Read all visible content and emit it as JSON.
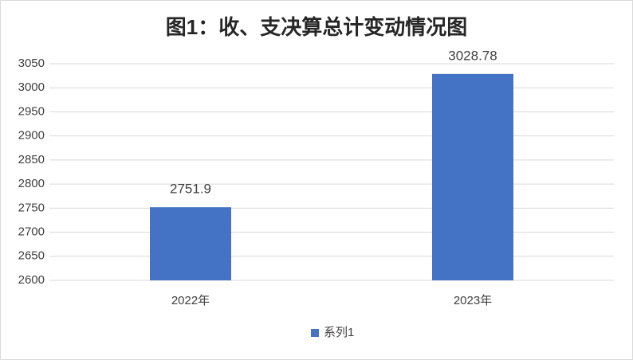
{
  "chart_data": {
    "type": "bar",
    "title": "图1：收、支决算总计变动情况图",
    "categories": [
      "2022年",
      "2023年"
    ],
    "series": [
      {
        "name": "系列1",
        "color": "#4472c4",
        "values": [
          2751.9,
          3028.78
        ]
      }
    ],
    "ylim": [
      2600,
      3050
    ],
    "yticks": [
      2600,
      2650,
      2700,
      2750,
      2800,
      2850,
      2900,
      2950,
      3000,
      3050
    ],
    "grid": true,
    "data_labels": true,
    "legend": "bottom"
  }
}
